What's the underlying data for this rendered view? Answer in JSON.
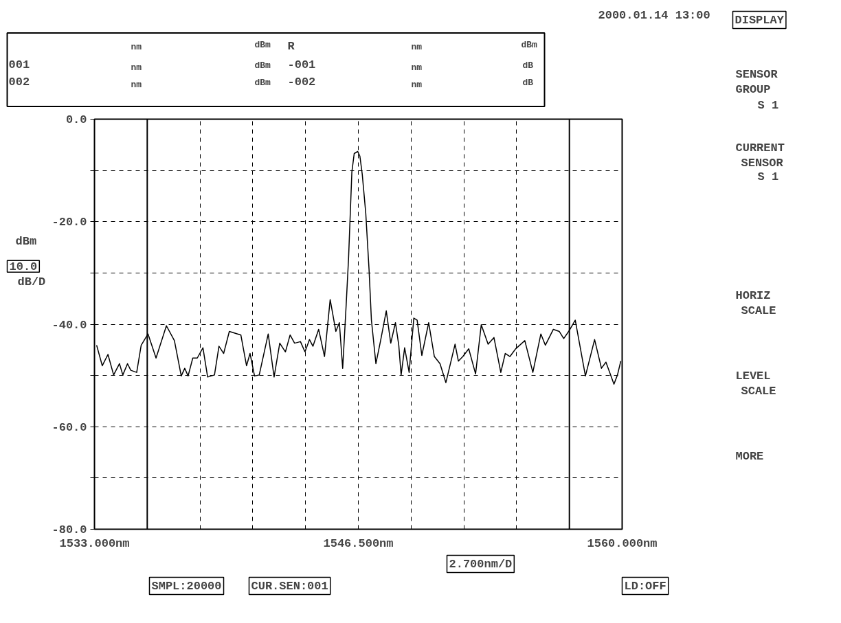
{
  "chart_data": {
    "type": "line",
    "ylabel": "dBm",
    "x": [
      1533.11,
      1533.4,
      1533.69,
      1533.98,
      1534.28,
      1534.45,
      1534.69,
      1534.86,
      1535.16,
      1535.39,
      1535.74,
      1536.15,
      1536.68,
      1537.09,
      1537.44,
      1537.62,
      1537.79,
      1538.03,
      1538.26,
      1538.55,
      1538.79,
      1539.14,
      1539.37,
      1539.61,
      1539.9,
      1540.49,
      1540.78,
      1540.96,
      1541.19,
      1541.43,
      1541.89,
      1542.19,
      1542.48,
      1542.77,
      1543.01,
      1543.24,
      1543.54,
      1543.77,
      1544.0,
      1544.18,
      1544.47,
      1544.77,
      1545.06,
      1545.35,
      1545.53,
      1545.7,
      1545.88,
      1546.0,
      1546.17,
      1546.29,
      1546.47,
      1546.58,
      1546.7,
      1546.88,
      1547.05,
      1547.17,
      1547.4,
      1547.64,
      1547.93,
      1548.16,
      1548.4,
      1548.57,
      1548.69,
      1548.87,
      1549.1,
      1549.34,
      1549.51,
      1549.75,
      1550.1,
      1550.39,
      1550.68,
      1550.98,
      1551.45,
      1551.62,
      1551.85,
      1552.15,
      1552.5,
      1552.79,
      1553.14,
      1553.44,
      1553.79,
      1554.02,
      1554.26,
      1554.55,
      1555.02,
      1555.43,
      1555.84,
      1556.07,
      1556.48,
      1556.78,
      1557.01,
      1557.3,
      1557.6,
      1558.12,
      1558.59,
      1558.94,
      1559.17,
      1559.58,
      1559.76,
      1559.93
    ],
    "series": [
      {
        "color": "#000000",
        "values": [
          -44.1,
          -48.1,
          -45.9,
          -49.9,
          -47.7,
          -49.9,
          -47.7,
          -49.0,
          -49.4,
          -44.1,
          -41.9,
          -46.6,
          -40.3,
          -43.2,
          -50.1,
          -48.6,
          -50.1,
          -46.6,
          -46.6,
          -44.6,
          -50.3,
          -49.9,
          -44.3,
          -45.7,
          -41.4,
          -42.1,
          -48.1,
          -45.7,
          -50.1,
          -49.9,
          -41.9,
          -50.3,
          -43.7,
          -45.4,
          -42.1,
          -43.7,
          -43.4,
          -45.4,
          -43.0,
          -44.3,
          -41.0,
          -46.3,
          -35.2,
          -41.4,
          -39.7,
          -48.6,
          -36.1,
          -27.2,
          -10.3,
          -6.7,
          -6.3,
          -7.2,
          -10.7,
          -18.3,
          -29.4,
          -39.2,
          -47.7,
          -43.2,
          -37.4,
          -43.7,
          -39.7,
          -44.1,
          -49.9,
          -44.6,
          -49.4,
          -38.8,
          -39.2,
          -46.1,
          -39.7,
          -46.3,
          -47.7,
          -51.4,
          -43.9,
          -47.2,
          -46.3,
          -44.8,
          -49.7,
          -40.1,
          -43.9,
          -42.6,
          -49.4,
          -45.7,
          -46.3,
          -44.8,
          -43.2,
          -49.4,
          -41.9,
          -44.1,
          -41.0,
          -41.4,
          -42.8,
          -41.2,
          -39.2,
          -50.1,
          -43.0,
          -48.6,
          -47.4,
          -51.7,
          -49.9,
          -47.2
        ]
      }
    ],
    "xlim": [
      1533,
      1560
    ],
    "ylim": [
      -80,
      0
    ],
    "xticks": [
      {
        "value": 1533,
        "label": "1533.000nm"
      },
      {
        "value": 1538.4,
        "label": null
      },
      {
        "value": 1541.1,
        "label": null
      },
      {
        "value": 1543.8,
        "label": null
      },
      {
        "value": 1546.5,
        "label": "1546.500nm"
      },
      {
        "value": 1549.2,
        "label": null
      },
      {
        "value": 1551.9,
        "label": null
      },
      {
        "value": 1554.6,
        "label": null
      },
      {
        "value": 1560,
        "label": "1560.000nm"
      }
    ],
    "yticks": [
      {
        "value": 0,
        "label": "0.0"
      },
      {
        "value": -10,
        "label": null
      },
      {
        "value": -20,
        "label": "-20.0"
      },
      {
        "value": -30,
        "label": null
      },
      {
        "value": -40,
        "label": "-40.0"
      },
      {
        "value": -50,
        "label": null
      },
      {
        "value": -60,
        "label": "-60.0"
      },
      {
        "value": -70,
        "label": null
      },
      {
        "value": -80,
        "label": "-80.0"
      }
    ],
    "grid": true,
    "line_style": "solid",
    "ref_lines": [
      {
        "axis": "x",
        "value": 1535.7,
        "color": "#000000",
        "line_style": "solid"
      },
      {
        "axis": "x",
        "value": 1557.3,
        "color": "#000000",
        "line_style": "solid"
      }
    ],
    "annotations": [
      "2000.01.14 13:00",
      "DISPLAY",
      "SENSOR",
      "GROUP",
      "S  1",
      "CURRENT",
      "SENSOR",
      "S  1",
      "HORIZ",
      "SCALE",
      "LEVEL",
      "SCALE",
      "MORE",
      "nm",
      "dBm",
      "R",
      "nm",
      "dBm",
      "001",
      "nm",
      "dBm",
      "-001",
      "nm",
      "dB",
      "002",
      "nm",
      "dBm",
      "-002",
      "nm",
      "dB",
      "10.0",
      "dB/D",
      "2.700nm/D",
      "SMPL:20000",
      "CUR.SEN:001",
      "LD:OFF"
    ]
  }
}
